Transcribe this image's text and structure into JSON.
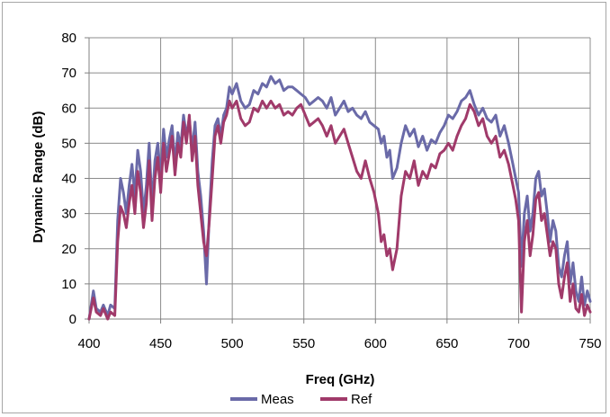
{
  "chart_data": {
    "type": "line",
    "title": "",
    "xlabel": "Freq (GHz)",
    "ylabel": "Dynamic Range (dB)",
    "xlim": [
      400,
      750
    ],
    "ylim": [
      0,
      80
    ],
    "x_ticks": [
      400,
      450,
      500,
      550,
      600,
      650,
      700,
      750
    ],
    "y_ticks": [
      0,
      10,
      20,
      30,
      40,
      50,
      60,
      70,
      80
    ],
    "x_tick_labels": [
      "400",
      "450",
      "500",
      "550",
      "600",
      "650",
      "700",
      "750"
    ],
    "y_tick_labels": [
      "0",
      "10",
      "20",
      "30",
      "40",
      "50",
      "60",
      "70",
      "80"
    ],
    "grid": true,
    "legend_position": "bottom",
    "series": [
      {
        "name": "Meas",
        "color": "#6a6aa8",
        "x": [
          400,
          403,
          405,
          408,
          410,
          413,
          415,
          418,
          420,
          422,
          424,
          426,
          428,
          430,
          432,
          434,
          436,
          438,
          440,
          442,
          444,
          446,
          448,
          450,
          452,
          454,
          456,
          458,
          460,
          462,
          464,
          466,
          468,
          470,
          472,
          474,
          476,
          478,
          480,
          482,
          484,
          486,
          488,
          490,
          492,
          494,
          496,
          498,
          500,
          503,
          506,
          509,
          512,
          515,
          518,
          521,
          524,
          527,
          530,
          533,
          536,
          539,
          542,
          545,
          548,
          551,
          554,
          557,
          560,
          563,
          566,
          569,
          572,
          575,
          578,
          581,
          584,
          587,
          590,
          593,
          596,
          599,
          602,
          604,
          606,
          608,
          610,
          612,
          615,
          618,
          621,
          624,
          627,
          630,
          633,
          636,
          639,
          642,
          645,
          648,
          651,
          654,
          657,
          660,
          663,
          666,
          669,
          672,
          675,
          678,
          681,
          684,
          687,
          690,
          693,
          696,
          698,
          700,
          702,
          704,
          706,
          708,
          710,
          712,
          714,
          716,
          718,
          720,
          722,
          724,
          726,
          728,
          730,
          732,
          734,
          736,
          738,
          740,
          742,
          744,
          746,
          748,
          750
        ],
        "y": [
          0,
          8,
          3,
          2,
          4,
          1,
          4,
          3,
          28,
          40,
          36,
          30,
          38,
          44,
          35,
          48,
          42,
          30,
          38,
          50,
          32,
          45,
          50,
          40,
          54,
          46,
          51,
          55,
          44,
          53,
          49,
          58,
          52,
          57,
          48,
          56,
          42,
          35,
          25,
          10,
          30,
          45,
          55,
          57,
          52,
          58,
          60,
          66,
          64,
          67,
          62,
          60,
          61,
          65,
          64,
          67,
          66,
          69,
          67,
          68,
          65,
          66,
          66,
          65,
          64,
          63,
          61,
          62,
          63,
          62,
          60,
          63,
          58,
          60,
          62,
          59,
          60,
          58,
          57,
          59,
          56,
          55,
          54,
          50,
          52,
          46,
          48,
          40,
          43,
          50,
          55,
          52,
          54,
          49,
          52,
          48,
          51,
          50,
          53,
          55,
          58,
          57,
          59,
          62,
          63,
          65,
          61,
          58,
          60,
          57,
          56,
          58,
          52,
          55,
          50,
          44,
          40,
          36,
          15,
          30,
          35,
          25,
          30,
          40,
          42,
          35,
          37,
          30,
          22,
          28,
          25,
          15,
          12,
          18,
          22,
          10,
          16,
          8,
          5,
          12,
          4,
          8,
          5
        ]
      },
      {
        "name": "Ref",
        "color": "#a03a6a",
        "x": [
          400,
          403,
          405,
          408,
          410,
          413,
          415,
          418,
          420,
          422,
          424,
          426,
          428,
          430,
          432,
          434,
          436,
          438,
          440,
          442,
          444,
          446,
          448,
          450,
          452,
          454,
          456,
          458,
          460,
          462,
          464,
          466,
          468,
          470,
          472,
          474,
          476,
          478,
          480,
          482,
          484,
          486,
          488,
          490,
          492,
          494,
          496,
          498,
          500,
          503,
          506,
          509,
          512,
          515,
          518,
          521,
          524,
          527,
          530,
          533,
          536,
          539,
          542,
          545,
          548,
          551,
          554,
          557,
          560,
          563,
          566,
          569,
          572,
          575,
          578,
          581,
          584,
          587,
          590,
          593,
          596,
          599,
          602,
          604,
          606,
          608,
          610,
          612,
          615,
          618,
          621,
          624,
          627,
          630,
          633,
          636,
          639,
          642,
          645,
          648,
          651,
          654,
          657,
          660,
          663,
          666,
          669,
          672,
          675,
          678,
          681,
          684,
          687,
          690,
          693,
          696,
          698,
          700,
          702,
          704,
          706,
          708,
          710,
          712,
          714,
          716,
          718,
          720,
          722,
          724,
          726,
          728,
          730,
          732,
          734,
          736,
          738,
          740,
          742,
          744,
          746,
          748,
          750
        ],
        "y": [
          0,
          6,
          2,
          1,
          3,
          0,
          2,
          1,
          22,
          32,
          30,
          26,
          33,
          38,
          30,
          42,
          36,
          26,
          33,
          45,
          28,
          40,
          46,
          36,
          50,
          42,
          47,
          52,
          41,
          50,
          46,
          56,
          50,
          58,
          45,
          52,
          38,
          30,
          22,
          18,
          28,
          40,
          52,
          55,
          50,
          56,
          58,
          62,
          60,
          62,
          57,
          55,
          56,
          60,
          59,
          62,
          60,
          62,
          60,
          61,
          58,
          59,
          58,
          60,
          61,
          58,
          55,
          56,
          57,
          55,
          52,
          55,
          50,
          52,
          54,
          50,
          46,
          42,
          40,
          45,
          40,
          36,
          30,
          22,
          24,
          18,
          20,
          14,
          20,
          35,
          42,
          40,
          45,
          38,
          42,
          40,
          44,
          43,
          47,
          48,
          50,
          48,
          52,
          55,
          57,
          61,
          59,
          55,
          57,
          52,
          50,
          52,
          46,
          48,
          44,
          38,
          34,
          28,
          2,
          22,
          28,
          18,
          24,
          34,
          36,
          28,
          30,
          24,
          18,
          22,
          20,
          10,
          6,
          12,
          16,
          5,
          10,
          3,
          2,
          7,
          1,
          4,
          2
        ]
      }
    ]
  }
}
